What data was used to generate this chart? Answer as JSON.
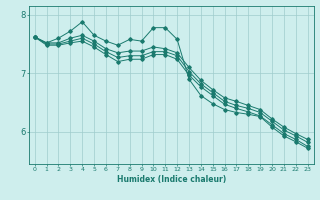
{
  "xlabel": "Humidex (Indice chaleur)",
  "bg_color": "#ceeeed",
  "grid_color": "#a0cccc",
  "line_color": "#1a7a6e",
  "xlim": [
    -0.5,
    23.5
  ],
  "ylim": [
    5.45,
    8.15
  ],
  "yticks": [
    6,
    7,
    8
  ],
  "xticks": [
    0,
    1,
    2,
    3,
    4,
    5,
    6,
    7,
    8,
    9,
    10,
    11,
    12,
    13,
    14,
    15,
    16,
    17,
    18,
    19,
    20,
    21,
    22,
    23
  ],
  "series": [
    {
      "x": [
        0,
        1,
        2,
        3,
        4,
        5,
        6,
        7,
        8,
        9,
        10,
        11,
        12,
        13,
        14,
        15,
        16,
        17,
        18,
        19,
        20,
        21,
        22,
        23
      ],
      "y": [
        7.62,
        7.52,
        7.6,
        7.72,
        7.88,
        7.65,
        7.55,
        7.48,
        7.58,
        7.55,
        7.78,
        7.78,
        7.58,
        6.9,
        6.62,
        6.48,
        6.38,
        6.33,
        6.3,
        6.26,
        6.08,
        5.93,
        5.83,
        5.72
      ]
    },
    {
      "x": [
        0,
        1,
        2,
        3,
        4,
        5,
        6,
        7,
        8,
        9,
        10,
        11,
        12,
        13,
        14,
        15,
        16,
        17,
        18,
        19,
        20,
        21,
        22,
        23
      ],
      "y": [
        7.62,
        7.52,
        7.52,
        7.6,
        7.65,
        7.55,
        7.42,
        7.35,
        7.38,
        7.38,
        7.45,
        7.42,
        7.35,
        7.1,
        6.88,
        6.72,
        6.58,
        6.52,
        6.45,
        6.38,
        6.22,
        6.08,
        5.97,
        5.87
      ]
    },
    {
      "x": [
        0,
        1,
        2,
        3,
        4,
        5,
        6,
        7,
        8,
        9,
        10,
        11,
        12,
        13,
        14,
        15,
        16,
        17,
        18,
        19,
        20,
        21,
        22,
        23
      ],
      "y": [
        7.62,
        7.5,
        7.5,
        7.55,
        7.6,
        7.5,
        7.37,
        7.27,
        7.3,
        7.3,
        7.37,
        7.37,
        7.3,
        7.03,
        6.82,
        6.67,
        6.52,
        6.45,
        6.4,
        6.33,
        6.18,
        6.03,
        5.93,
        5.82
      ]
    },
    {
      "x": [
        0,
        1,
        2,
        3,
        4,
        5,
        6,
        7,
        8,
        9,
        10,
        11,
        12,
        13,
        14,
        15,
        16,
        17,
        18,
        19,
        20,
        21,
        22,
        23
      ],
      "y": [
        7.62,
        7.48,
        7.48,
        7.52,
        7.55,
        7.45,
        7.32,
        7.2,
        7.24,
        7.24,
        7.32,
        7.32,
        7.24,
        6.97,
        6.77,
        6.62,
        6.47,
        6.4,
        6.34,
        6.27,
        6.12,
        5.97,
        5.87,
        5.75
      ]
    }
  ]
}
